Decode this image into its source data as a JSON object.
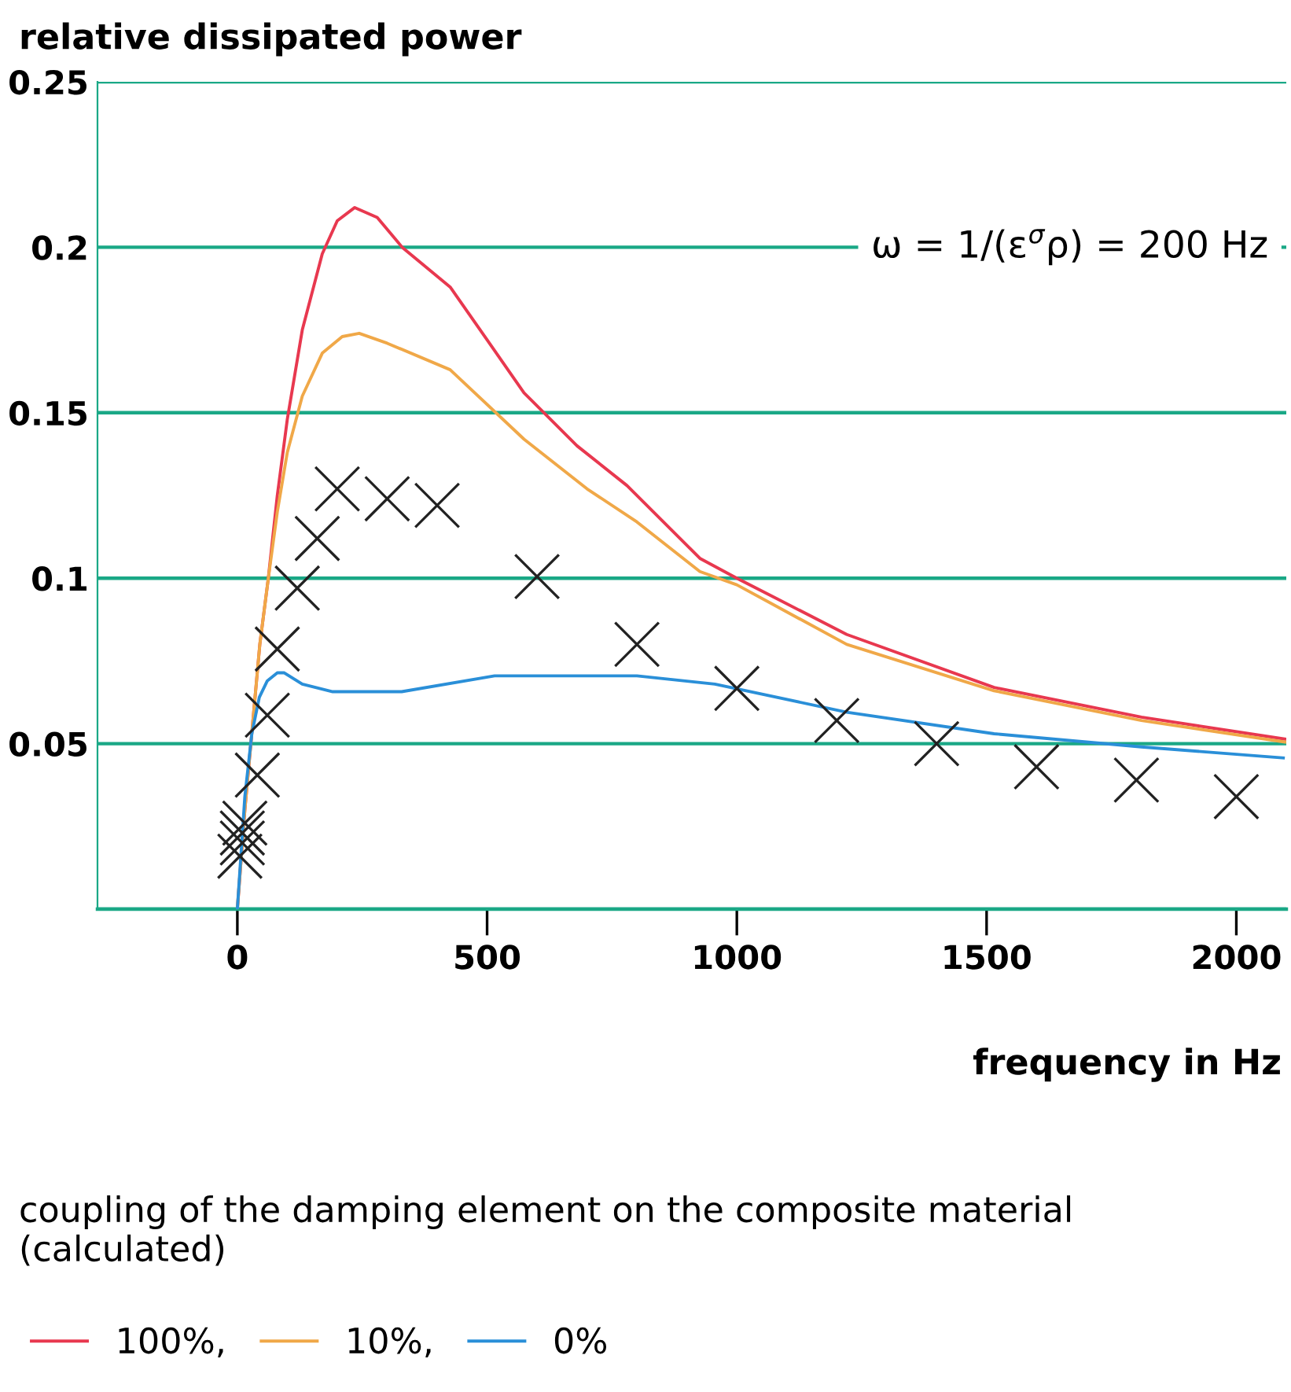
{
  "chart_data": {
    "type": "line",
    "ylabel": "relative dissipated power",
    "xlabel": "frequency in Hz",
    "annotations": [
      "ω = 1/(ε$^{σ}$ρ) = 200 Hz",
      "coupling of the damping element on the composite material (calculated)"
    ],
    "xlim": [
      -280,
      2100
    ],
    "xticks": [
      0,
      500,
      1000,
      1500,
      2000
    ],
    "ylim": [
      0,
      0.25
    ],
    "yticks": [
      {
        "value": 0,
        "label": null
      },
      0.05,
      0.1,
      0.15,
      0.2,
      0.25
    ],
    "grid": "y",
    "legend": "bottom",
    "series": [
      {
        "name": "100%,",
        "color": "#e8384f",
        "marker": "none",
        "line_style": "solid",
        "x": [
          0,
          15,
          30,
          45,
          62,
          80,
          100,
          130,
          170,
          200,
          235,
          280,
          330,
          426,
          500,
          574,
          680,
          780,
          926,
          1000,
          1220,
          1515,
          1810,
          2097
        ],
        "values": [
          0,
          0.03,
          0.055,
          0.08,
          0.1,
          0.125,
          0.148,
          0.175,
          0.198,
          0.208,
          0.212,
          0.209,
          0.2,
          0.188,
          0.172,
          0.156,
          0.14,
          0.128,
          0.106,
          0.1,
          0.083,
          0.067,
          0.058,
          0.0514
        ]
      },
      {
        "name": "10%,",
        "color": "#f0a848",
        "marker": "none",
        "line_style": "solid",
        "x": [
          0,
          15,
          30,
          45,
          62,
          80,
          100,
          130,
          170,
          210,
          244,
          300,
          426,
          574,
          700,
          800,
          926,
          1000,
          1220,
          1515,
          1810,
          2097
        ],
        "values": [
          0,
          0.03,
          0.055,
          0.08,
          0.1,
          0.12,
          0.138,
          0.155,
          0.168,
          0.173,
          0.174,
          0.171,
          0.163,
          0.142,
          0.127,
          0.117,
          0.102,
          0.098,
          0.08,
          0.066,
          0.057,
          0.0505
        ]
      },
      {
        "name": "0%",
        "color": "#2a8fd8",
        "marker": "none",
        "line_style": "solid",
        "x": [
          0,
          15,
          29,
          44,
          60,
          80,
          94,
          130,
          191,
          329,
          515,
          800,
          956,
          1220,
          1515,
          1810,
          2094
        ],
        "values": [
          0,
          0.034,
          0.053,
          0.064,
          0.069,
          0.0714,
          0.0714,
          0.068,
          0.0657,
          0.0657,
          0.0705,
          0.0705,
          0.068,
          0.0595,
          0.053,
          0.049,
          0.0457
        ]
      },
      {
        "color": "#222222",
        "type": "scatter",
        "marker": "cross",
        "x": [
          5,
          10,
          10,
          15,
          40,
          60,
          80,
          120,
          160,
          200,
          300,
          400,
          600,
          800,
          1000,
          1200,
          1400,
          1600,
          1800,
          2000
        ],
        "values": [
          0.016,
          0.02,
          0.023,
          0.026,
          0.0405,
          0.0586,
          0.0786,
          0.097,
          0.112,
          0.127,
          0.124,
          0.122,
          0.1005,
          0.08,
          0.0667,
          0.057,
          0.05,
          0.043,
          0.039,
          0.034
        ]
      }
    ]
  }
}
